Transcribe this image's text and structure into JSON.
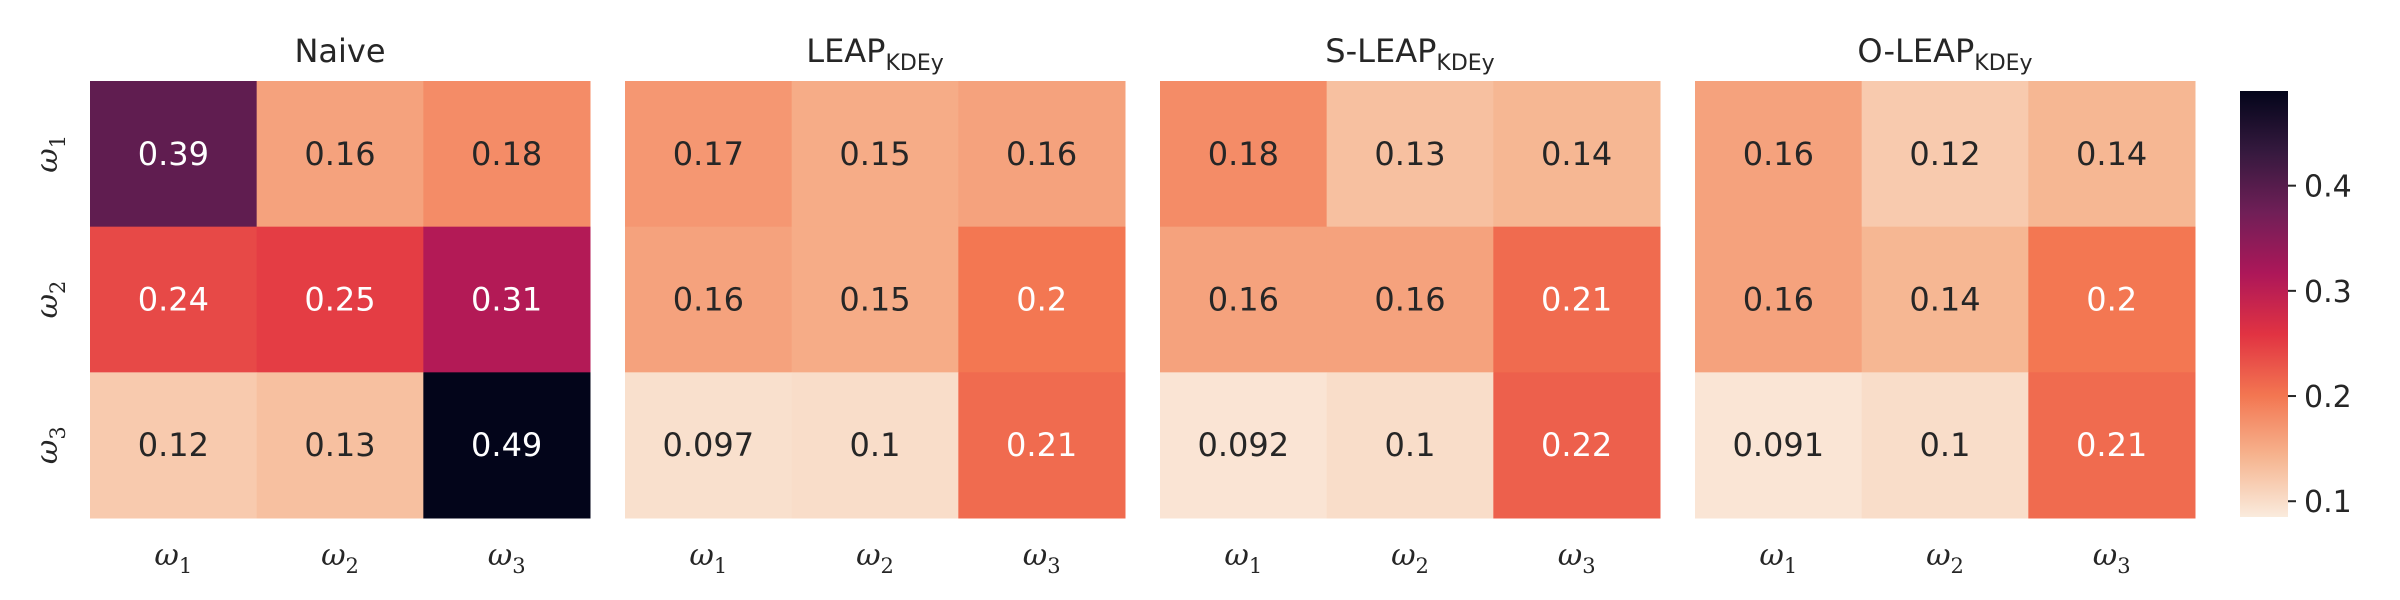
{
  "chart_data": [
    {
      "type": "heatmap",
      "title": "Naive",
      "title_sub": "",
      "rows": [
        "ω1",
        "ω2",
        "ω3"
      ],
      "cols": [
        "ω1",
        "ω2",
        "ω3"
      ],
      "values": [
        [
          0.39,
          0.16,
          0.18
        ],
        [
          0.24,
          0.25,
          0.31
        ],
        [
          0.12,
          0.13,
          0.49
        ]
      ]
    },
    {
      "type": "heatmap",
      "title": "LEAP",
      "title_sub": "KDEy",
      "rows": [
        "ω1",
        "ω2",
        "ω3"
      ],
      "cols": [
        "ω1",
        "ω2",
        "ω3"
      ],
      "values": [
        [
          0.17,
          0.15,
          0.16
        ],
        [
          0.16,
          0.15,
          0.2
        ],
        [
          0.097,
          0.1,
          0.21
        ]
      ]
    },
    {
      "type": "heatmap",
      "title": "S-LEAP",
      "title_sub": "KDEy",
      "rows": [
        "ω1",
        "ω2",
        "ω3"
      ],
      "cols": [
        "ω1",
        "ω2",
        "ω3"
      ],
      "values": [
        [
          0.18,
          0.13,
          0.14
        ],
        [
          0.16,
          0.16,
          0.21
        ],
        [
          0.092,
          0.1,
          0.22
        ]
      ]
    },
    {
      "type": "heatmap",
      "title": "O-LEAP",
      "title_sub": "KDEy",
      "rows": [
        "ω1",
        "ω2",
        "ω3"
      ],
      "cols": [
        "ω1",
        "ω2",
        "ω3"
      ],
      "values": [
        [
          0.16,
          0.12,
          0.14
        ],
        [
          0.16,
          0.14,
          0.2
        ],
        [
          0.091,
          0.1,
          0.21
        ]
      ]
    }
  ],
  "colorbar": {
    "range": [
      0.085,
      0.49
    ],
    "ticks": [
      0.1,
      0.2,
      0.3,
      0.4
    ],
    "tick_labels": [
      "0.1",
      "0.2",
      "0.3",
      "0.4"
    ],
    "colormap": "rocket_r",
    "colors": [
      "#faebdd",
      "#f6b48f",
      "#f37651",
      "#e13342",
      "#ad1759",
      "#701f57",
      "#35193e",
      "#03051a"
    ],
    "light_text_color": "#ffffff",
    "dark_text_color": "#262626"
  }
}
